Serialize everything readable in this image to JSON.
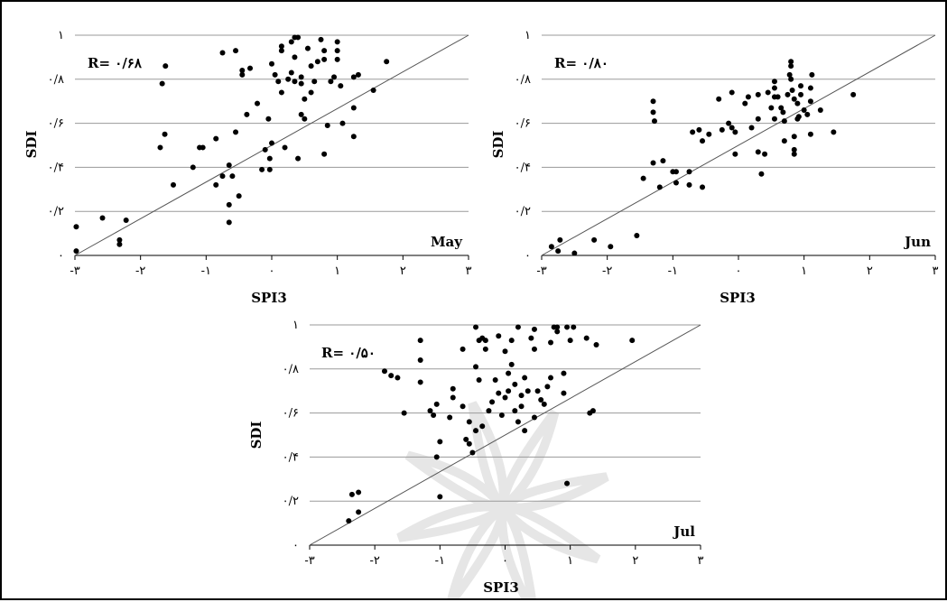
{
  "colors": {
    "grid": "#9a9a9a",
    "points": "#000000",
    "diagonal": "#555555",
    "watermark": "#e6e6e6"
  },
  "chart_data": [
    {
      "type": "scatter",
      "title": "",
      "xlabel": "SPI3",
      "ylabel": "SDI",
      "r_label": "R= ۰/۶۸",
      "month": "May",
      "xlim": [
        -3,
        3
      ],
      "ylim": [
        0,
        1
      ],
      "xticks": [
        "-۳",
        "-۲",
        "-۱",
        "۰",
        "۱",
        "۲",
        "۳"
      ],
      "yticks": [
        "۰",
        "۰/۲",
        "۰/۴",
        "۰/۶",
        "۰/۸",
        "۱"
      ],
      "diagonal_line": [
        [
          -3,
          0
        ],
        [
          3,
          1
        ]
      ],
      "points": [
        [
          -2.98,
          0.02
        ],
        [
          -2.98,
          0.13
        ],
        [
          -2.58,
          0.17
        ],
        [
          -2.32,
          0.05
        ],
        [
          -2.32,
          0.07
        ],
        [
          -2.22,
          0.16
        ],
        [
          -1.67,
          0.78
        ],
        [
          -1.62,
          0.86
        ],
        [
          -1.63,
          0.55
        ],
        [
          -1.7,
          0.49
        ],
        [
          -1.5,
          0.32
        ],
        [
          -1.2,
          0.4
        ],
        [
          -1.05,
          0.49
        ],
        [
          -1.1,
          0.49
        ],
        [
          -0.85,
          0.53
        ],
        [
          -0.85,
          0.32
        ],
        [
          -0.75,
          0.36
        ],
        [
          -0.65,
          0.41
        ],
        [
          -0.65,
          0.23
        ],
        [
          -0.65,
          0.15
        ],
        [
          -0.6,
          0.36
        ],
        [
          -0.5,
          0.27
        ],
        [
          -0.55,
          0.56
        ],
        [
          -0.45,
          0.82
        ],
        [
          -0.45,
          0.84
        ],
        [
          -0.33,
          0.85
        ],
        [
          -0.38,
          0.64
        ],
        [
          -0.22,
          0.69
        ],
        [
          -0.15,
          0.39
        ],
        [
          -0.1,
          0.48
        ],
        [
          -0.03,
          0.44
        ],
        [
          -0.03,
          0.39
        ],
        [
          0.0,
          0.51
        ],
        [
          -0.05,
          0.62
        ],
        [
          0.0,
          0.87
        ],
        [
          0.05,
          0.82
        ],
        [
          0.1,
          0.79
        ],
        [
          0.15,
          0.74
        ],
        [
          0.2,
          0.49
        ],
        [
          0.15,
          0.93
        ],
        [
          0.15,
          0.95
        ],
        [
          0.25,
          0.8
        ],
        [
          0.3,
          0.83
        ],
        [
          0.3,
          0.97
        ],
        [
          0.35,
          0.99
        ],
        [
          0.4,
          0.99
        ],
        [
          0.35,
          0.9
        ],
        [
          0.35,
          0.79
        ],
        [
          0.45,
          0.64
        ],
        [
          0.5,
          0.62
        ],
        [
          0.5,
          0.71
        ],
        [
          0.45,
          0.78
        ],
        [
          0.45,
          0.81
        ],
        [
          0.55,
          0.94
        ],
        [
          0.6,
          0.86
        ],
        [
          0.6,
          0.74
        ],
        [
          0.65,
          0.79
        ],
        [
          0.7,
          0.88
        ],
        [
          0.75,
          0.98
        ],
        [
          0.8,
          0.93
        ],
        [
          0.8,
          0.89
        ],
        [
          0.85,
          0.59
        ],
        [
          0.9,
          0.79
        ],
        [
          0.95,
          0.81
        ],
        [
          1.0,
          0.97
        ],
        [
          1.0,
          0.93
        ],
        [
          1.0,
          0.89
        ],
        [
          1.05,
          0.77
        ],
        [
          1.08,
          0.6
        ],
        [
          0.8,
          0.46
        ],
        [
          0.4,
          0.44
        ],
        [
          1.25,
          0.81
        ],
        [
          1.25,
          0.67
        ],
        [
          1.25,
          0.54
        ],
        [
          1.32,
          0.82
        ],
        [
          1.55,
          0.75
        ],
        [
          1.75,
          0.88
        ],
        [
          -0.55,
          0.93
        ],
        [
          -0.75,
          0.92
        ]
      ]
    },
    {
      "type": "scatter",
      "title": "",
      "xlabel": "SPI3",
      "ylabel": "SDI",
      "r_label": "R= ۰/۸۰",
      "month": "Jun",
      "xlim": [
        -3,
        3
      ],
      "ylim": [
        0,
        1
      ],
      "xticks": [
        "-۳",
        "-۲",
        "-۱",
        "۰",
        "۱",
        "۲",
        "۳"
      ],
      "yticks": [
        "۰",
        "۰/۲",
        "۰/۴",
        "۰/۶",
        "۰/۸",
        "۱"
      ],
      "diagonal_line": [
        [
          -3,
          0
        ],
        [
          3,
          1
        ]
      ],
      "points": [
        [
          -2.85,
          0.04
        ],
        [
          -2.72,
          0.07
        ],
        [
          -2.75,
          0.02
        ],
        [
          -2.5,
          0.01
        ],
        [
          -2.2,
          0.07
        ],
        [
          -1.95,
          0.04
        ],
        [
          -1.55,
          0.09
        ],
        [
          -1.45,
          0.35
        ],
        [
          -1.3,
          0.42
        ],
        [
          -1.3,
          0.65
        ],
        [
          -1.3,
          0.7
        ],
        [
          -1.28,
          0.61
        ],
        [
          -1.2,
          0.31
        ],
        [
          -1.15,
          0.43
        ],
        [
          -1.0,
          0.38
        ],
        [
          -0.95,
          0.38
        ],
        [
          -0.95,
          0.33
        ],
        [
          -0.75,
          0.38
        ],
        [
          -0.75,
          0.32
        ],
        [
          -0.7,
          0.56
        ],
        [
          -0.6,
          0.57
        ],
        [
          -0.55,
          0.52
        ],
        [
          -0.55,
          0.31
        ],
        [
          -0.45,
          0.55
        ],
        [
          -0.3,
          0.71
        ],
        [
          -0.25,
          0.57
        ],
        [
          -0.15,
          0.6
        ],
        [
          -0.1,
          0.74
        ],
        [
          -0.1,
          0.58
        ],
        [
          -0.05,
          0.56
        ],
        [
          -0.05,
          0.46
        ],
        [
          0.1,
          0.69
        ],
        [
          0.15,
          0.72
        ],
        [
          0.2,
          0.58
        ],
        [
          0.3,
          0.73
        ],
        [
          0.3,
          0.62
        ],
        [
          0.3,
          0.47
        ],
        [
          0.4,
          0.46
        ],
        [
          0.35,
          0.37
        ],
        [
          0.45,
          0.74
        ],
        [
          0.5,
          0.67
        ],
        [
          0.55,
          0.62
        ],
        [
          0.55,
          0.72
        ],
        [
          0.55,
          0.79
        ],
        [
          0.55,
          0.76
        ],
        [
          0.6,
          0.72
        ],
        [
          0.65,
          0.67
        ],
        [
          0.7,
          0.61
        ],
        [
          0.7,
          0.52
        ],
        [
          0.75,
          0.73
        ],
        [
          0.78,
          0.82
        ],
        [
          0.8,
          0.86
        ],
        [
          0.8,
          0.88
        ],
        [
          0.8,
          0.8
        ],
        [
          0.82,
          0.75
        ],
        [
          0.85,
          0.71
        ],
        [
          0.85,
          0.54
        ],
        [
          0.85,
          0.48
        ],
        [
          0.85,
          0.46
        ],
        [
          0.9,
          0.62
        ],
        [
          0.9,
          0.69
        ],
        [
          0.95,
          0.77
        ],
        [
          0.95,
          0.73
        ],
        [
          1.0,
          0.66
        ],
        [
          1.05,
          0.64
        ],
        [
          1.1,
          0.7
        ],
        [
          1.1,
          0.76
        ],
        [
          1.1,
          0.55
        ],
        [
          1.12,
          0.82
        ],
        [
          1.25,
          0.66
        ],
        [
          1.45,
          0.56
        ],
        [
          1.75,
          0.73
        ],
        [
          0.92,
          0.63
        ],
        [
          0.68,
          0.65
        ]
      ]
    },
    {
      "type": "scatter",
      "title": "",
      "xlabel": "SPI3",
      "ylabel": "SDI",
      "r_label": "R= ۰/۵۰",
      "month": "Jul",
      "xlim": [
        -3,
        3
      ],
      "ylim": [
        0,
        1
      ],
      "xticks": [
        "-۳",
        "-۲",
        "-۱",
        "۰",
        "۱",
        "۲",
        "۳"
      ],
      "yticks": [
        "۰",
        "۰/۲",
        "۰/۴",
        "۰/۶",
        "۰/۸",
        "۱"
      ],
      "diagonal_line": [
        [
          -3,
          0
        ],
        [
          3,
          1
        ]
      ],
      "points": [
        [
          -2.4,
          0.11
        ],
        [
          -2.35,
          0.23
        ],
        [
          -2.25,
          0.24
        ],
        [
          -2.25,
          0.15
        ],
        [
          -1.85,
          0.79
        ],
        [
          -1.75,
          0.77
        ],
        [
          -1.65,
          0.76
        ],
        [
          -1.55,
          0.6
        ],
        [
          -1.05,
          0.4
        ],
        [
          -1.0,
          0.22
        ],
        [
          -1.3,
          0.74
        ],
        [
          -1.3,
          0.84
        ],
        [
          -1.3,
          0.93
        ],
        [
          -1.15,
          0.61
        ],
        [
          -1.1,
          0.59
        ],
        [
          -1.05,
          0.64
        ],
        [
          -1.0,
          0.47
        ],
        [
          -0.85,
          0.58
        ],
        [
          -0.8,
          0.71
        ],
        [
          -0.8,
          0.67
        ],
        [
          -0.65,
          0.63
        ],
        [
          -0.6,
          0.48
        ],
        [
          -0.55,
          0.46
        ],
        [
          -0.5,
          0.42
        ],
        [
          -0.45,
          0.52
        ],
        [
          -0.4,
          0.75
        ],
        [
          -0.4,
          0.93
        ],
        [
          -0.35,
          0.94
        ],
        [
          -0.3,
          0.89
        ],
        [
          -0.3,
          0.93
        ],
        [
          -0.25,
          0.61
        ],
        [
          -0.2,
          0.65
        ],
        [
          -0.15,
          0.75
        ],
        [
          -0.1,
          0.69
        ],
        [
          -0.1,
          0.95
        ],
        [
          -0.05,
          0.59
        ],
        [
          0.0,
          0.67
        ],
        [
          0.0,
          0.88
        ],
        [
          0.05,
          0.7
        ],
        [
          0.05,
          0.78
        ],
        [
          0.1,
          0.82
        ],
        [
          0.1,
          0.93
        ],
        [
          0.15,
          0.73
        ],
        [
          0.15,
          0.61
        ],
        [
          0.2,
          0.56
        ],
        [
          0.2,
          0.99
        ],
        [
          0.25,
          0.63
        ],
        [
          0.25,
          0.68
        ],
        [
          0.3,
          0.76
        ],
        [
          0.35,
          0.7
        ],
        [
          0.4,
          0.94
        ],
        [
          0.45,
          0.98
        ],
        [
          0.45,
          0.89
        ],
        [
          0.5,
          0.7
        ],
        [
          0.55,
          0.66
        ],
        [
          0.6,
          0.64
        ],
        [
          0.65,
          0.72
        ],
        [
          0.7,
          0.76
        ],
        [
          0.7,
          0.92
        ],
        [
          0.75,
          0.99
        ],
        [
          0.8,
          0.99
        ],
        [
          0.8,
          0.97
        ],
        [
          0.9,
          0.78
        ],
        [
          0.9,
          0.69
        ],
        [
          0.95,
          0.99
        ],
        [
          1.0,
          0.93
        ],
        [
          1.05,
          0.99
        ],
        [
          1.25,
          0.94
        ],
        [
          1.3,
          0.6
        ],
        [
          1.35,
          0.61
        ],
        [
          1.4,
          0.91
        ],
        [
          1.95,
          0.93
        ],
        [
          0.95,
          0.28
        ],
        [
          -0.45,
          0.81
        ],
        [
          -0.65,
          0.89
        ],
        [
          -0.45,
          0.99
        ],
        [
          -0.55,
          0.56
        ],
        [
          -0.35,
          0.54
        ],
        [
          0.3,
          0.52
        ],
        [
          0.45,
          0.58
        ]
      ]
    }
  ]
}
